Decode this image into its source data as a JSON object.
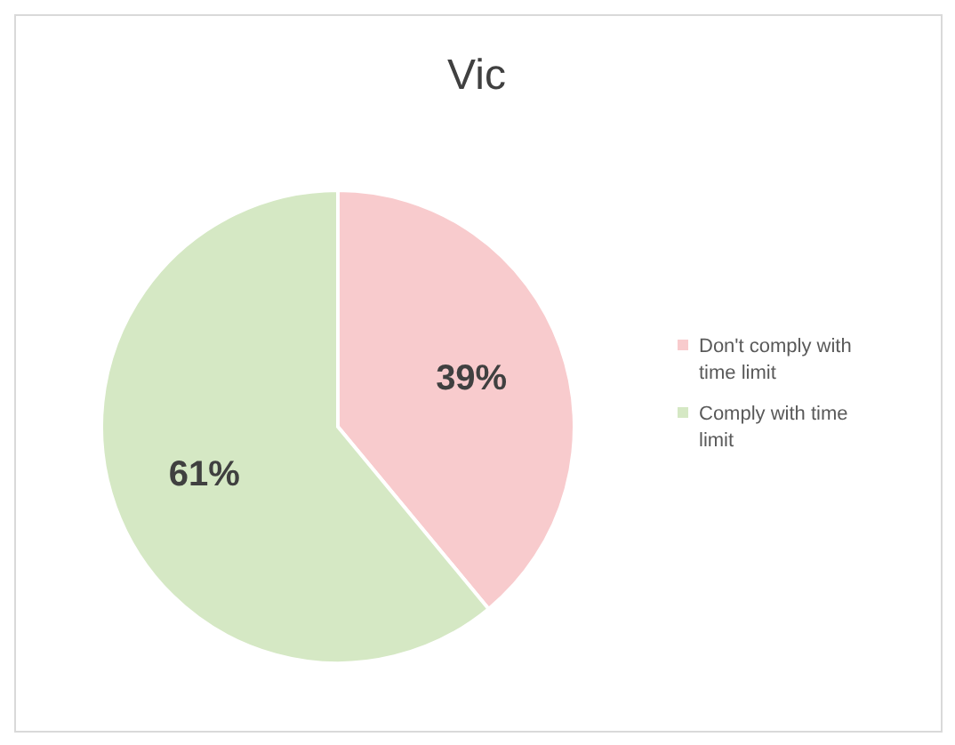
{
  "chart_data": {
    "type": "pie",
    "title": "Vic",
    "categories": [
      "Don't comply with time limit",
      "Comply with time limit"
    ],
    "values": [
      39,
      61
    ],
    "colors": [
      "#f8cbcd",
      "#d5e8c4"
    ],
    "value_labels": [
      "39%",
      "61%"
    ],
    "legend": "right"
  }
}
